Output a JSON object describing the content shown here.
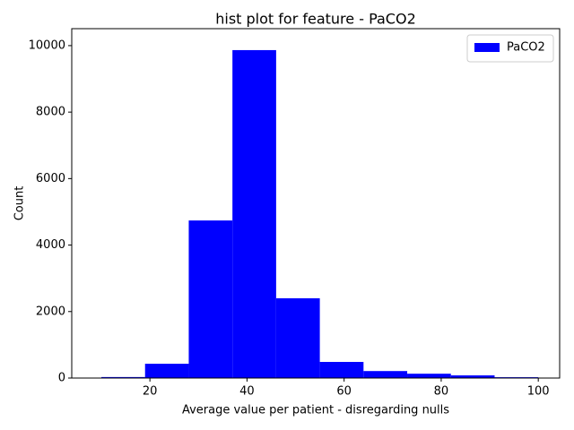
{
  "chart_data": {
    "type": "histogram",
    "title": "hist plot for feature -  PaCO2",
    "xlabel": "Average value per patient - disregarding nulls",
    "ylabel": "Count",
    "bins": [
      10,
      19,
      28,
      37,
      46,
      55,
      64,
      73,
      82,
      91,
      100
    ],
    "series": [
      {
        "name": "PaCO2",
        "color": "#0000ff",
        "values": [
          30,
          430,
          4740,
          9865,
          2400,
          485,
          210,
          130,
          80,
          25
        ]
      }
    ],
    "xlim": [
      3.9,
      104.4
    ],
    "ylim": [
      0,
      10510
    ],
    "xticks": [
      20,
      40,
      60,
      80,
      100
    ],
    "yticks": [
      0,
      2000,
      4000,
      6000,
      8000,
      10000
    ],
    "legend": "upper right"
  }
}
